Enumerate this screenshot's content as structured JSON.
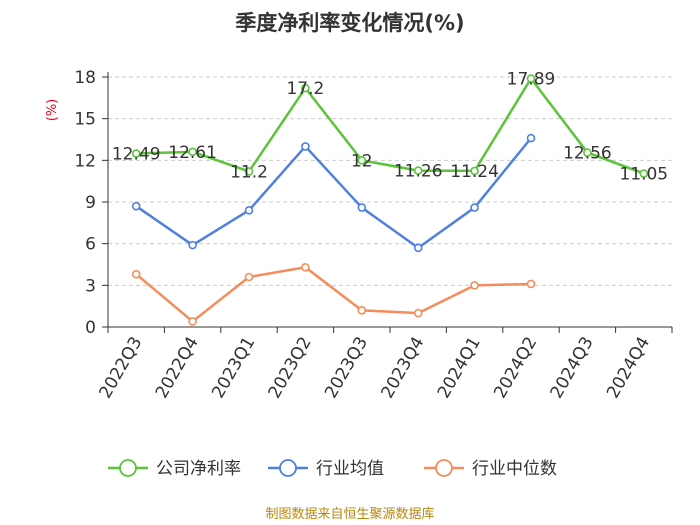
{
  "chart_data": {
    "type": "line",
    "title": "季度净利率变化情况(%)",
    "ylabel": "(%)",
    "xlabel": "",
    "categories": [
      "2022Q3",
      "2022Q4",
      "2023Q1",
      "2023Q2",
      "2023Q3",
      "2023Q4",
      "2024Q1",
      "2024Q2",
      "2024Q3",
      "2024Q4"
    ],
    "ylim": [
      0,
      18
    ],
    "yticks": [
      0,
      3,
      6,
      9,
      12,
      15,
      18
    ],
    "grid": true,
    "legend_position": "bottom",
    "series": [
      {
        "name": "公司净利率",
        "color": "#5cc43a",
        "values": [
          12.49,
          12.61,
          11.2,
          17.2,
          12,
          11.26,
          11.24,
          17.89,
          12.56,
          11.05
        ],
        "data_labels": [
          "12.49",
          "12.61",
          "11.2",
          "17.2",
          "12",
          "11.26",
          "11.24",
          "17.89",
          "12.56",
          "11.05"
        ]
      },
      {
        "name": "行业均值",
        "color": "#4f80e0",
        "values": [
          8.7,
          5.9,
          8.4,
          13.0,
          8.6,
          5.7,
          8.6,
          13.6,
          null,
          null
        ]
      },
      {
        "name": "行业中位数",
        "color": "#f58c5c",
        "values": [
          3.8,
          0.4,
          3.6,
          4.3,
          1.2,
          1.0,
          3.0,
          3.1,
          null,
          null
        ]
      }
    ]
  },
  "source_text": "制图数据来自恒生聚源数据库"
}
